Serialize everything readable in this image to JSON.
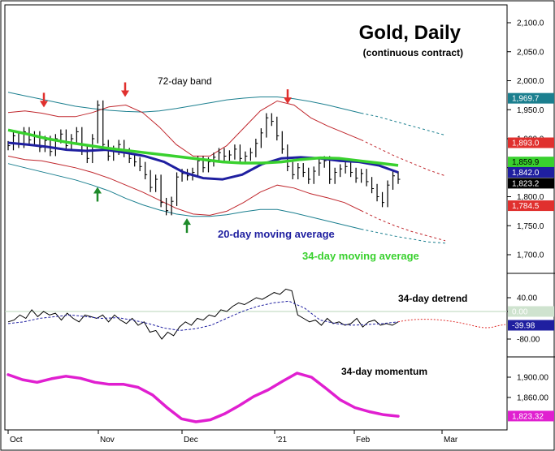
{
  "chart_data": {
    "type": "line",
    "title": "Gold, Daily",
    "subtitle": "(continuous contract)",
    "x_labels": [
      "Oct",
      "Nov",
      "Dec",
      "'21",
      "Feb",
      "Mar"
    ],
    "panels": [
      {
        "name": "price",
        "y_ticks": [
          "2,100.0",
          "2,050.0",
          "2,000.0",
          "1,950.0",
          "1,900.0",
          "1,850.0",
          "1,800.0",
          "1,750.0",
          "1,700.0"
        ],
        "ylim": [
          1670,
          2110
        ],
        "annotations": [
          "72-day band",
          "20-day moving average",
          "34-day moving average"
        ],
        "series": [
          {
            "name": "72-day band",
            "color": "#1b7f8f",
            "role": "outer band",
            "values": [
              1980,
              1974,
              1968,
              1962,
              1956,
              1952,
              1949,
              1947,
              1946,
              1948,
              1952,
              1957,
              1962,
              1967,
              1970,
              1972,
              1972,
              1969,
              1964,
              1958,
              1951,
              1944,
              1938,
              1930,
              1922,
              1914,
              1906
            ]
          },
          {
            "name": "72-day band",
            "color": "#1b7f8f",
            "role": "outer band",
            "values": [
              1857,
              1850,
              1843,
              1836,
              1829,
              1820,
              1810,
              1797,
              1786,
              1777,
              1770,
              1766,
              1766,
              1769,
              1774,
              1778,
              1778,
              1772,
              1765,
              1758,
              1751,
              1744,
              1738,
              1732,
              1727,
              1722,
              1720
            ]
          },
          {
            "name": "band",
            "color": "#c0272d",
            "role": "inner band",
            "values": [
              1945,
              1948,
              1944,
              1938,
              1938,
              1945,
              1955,
              1958,
              1945,
              1920,
              1890,
              1870,
              1870,
              1888,
              1918,
              1948,
              1965,
              1958,
              1936,
              1922,
              1910,
              1898,
              1884,
              1870,
              1858,
              1846,
              1836
            ]
          },
          {
            "name": "band",
            "color": "#c0272d",
            "role": "inner band",
            "values": [
              1870,
              1864,
              1862,
              1856,
              1850,
              1842,
              1832,
              1820,
              1808,
              1794,
              1780,
              1770,
              1768,
              1775,
              1790,
              1808,
              1820,
              1815,
              1805,
              1798,
              1790,
              1776,
              1762,
              1750,
              1740,
              1732,
              1724
            ]
          },
          {
            "name": "20-day moving average",
            "color": "#1f1fa0",
            "values": [
              1893,
              1890,
              1886,
              1881,
              1879,
              1881,
              1876,
              1870,
              1860,
              1842,
              1832,
              1830,
              1838,
              1856,
              1866,
              1868,
              1866,
              1862,
              1860,
              1854,
              1842
            ]
          },
          {
            "name": "34-day moving average",
            "color": "#39d12e",
            "values": [
              1915,
              1908,
              1900,
              1894,
              1889,
              1884,
              1880,
              1876,
              1872,
              1868,
              1864,
              1860,
              1858,
              1858,
              1860,
              1864,
              1867,
              1866,
              1862,
              1858,
              1854
            ]
          }
        ],
        "price_bars_close": [
          1888,
          1905,
          1892,
          1912,
          1898,
          1905,
          1885,
          1897,
          1878,
          1900,
          1908,
          1888,
          1900,
          1912,
          1880,
          1866,
          1900,
          1958,
          1890,
          1870,
          1880,
          1890,
          1876,
          1866,
          1860,
          1852,
          1838,
          1816,
          1830,
          1790,
          1776,
          1792,
          1834,
          1840,
          1836,
          1842,
          1862,
          1850,
          1860,
          1868,
          1876,
          1870,
          1872,
          1882,
          1866,
          1870,
          1876,
          1892,
          1910,
          1936,
          1930,
          1905,
          1882,
          1852,
          1838,
          1850,
          1842,
          1830,
          1844,
          1858,
          1862,
          1830,
          1842,
          1848,
          1852,
          1842,
          1832,
          1840,
          1826,
          1814,
          1800,
          1790,
          1820,
          1836,
          1830
        ],
        "tags": [
          {
            "text": "1,969.7",
            "bg": "#1b7f8f",
            "fg": "#ffffff",
            "value": 1969.7
          },
          {
            "text": "1,893.0",
            "bg": "#e0302e",
            "fg": "#ffffff",
            "value": 1893.0
          },
          {
            "text": "1,859.9",
            "bg": "#39d12e",
            "fg": "#000000",
            "value": 1859.9
          },
          {
            "text": "1,842.0",
            "bg": "#1f1fa0",
            "fg": "#ffffff",
            "value": 1842.0
          },
          {
            "text": "1,823.2",
            "bg": "#000000",
            "fg": "#ffffff",
            "value": 1823.2
          },
          {
            "text": "1,784.5",
            "bg": "#e0302e",
            "fg": "#ffffff",
            "value": 1784.5
          }
        ],
        "markers": [
          {
            "type": "down",
            "color": "red",
            "price": 1940
          },
          {
            "type": "up",
            "color": "green",
            "price": 1828
          },
          {
            "type": "down",
            "color": "red",
            "price": 1958
          },
          {
            "type": "up",
            "color": "green",
            "price": 1774
          },
          {
            "type": "down",
            "color": "red",
            "price": 1946
          }
        ]
      },
      {
        "name": "34-day detrend",
        "y_ticks": [
          "40.00",
          "0.00",
          "-80.00"
        ],
        "ylim": [
          -100,
          80
        ],
        "tags": [
          {
            "text": "0.00",
            "bg": "#cfe3cf",
            "fg": "#ffffff",
            "value": 0
          },
          {
            "text": "-39.98",
            "bg": "#1f1fa0",
            "fg": "#ffffff",
            "value": -39.98
          }
        ],
        "values": [
          -30,
          -25,
          -10,
          -20,
          5,
          -15,
          0,
          -10,
          -5,
          -25,
          -5,
          -20,
          -30,
          -10,
          -15,
          -20,
          -10,
          -30,
          -10,
          -25,
          -35,
          -20,
          -40,
          -30,
          -60,
          -55,
          -80,
          -60,
          -70,
          -45,
          -30,
          -40,
          -20,
          -25,
          -10,
          -15,
          5,
          0,
          15,
          25,
          20,
          30,
          40,
          35,
          45,
          55,
          50,
          65,
          60,
          -10,
          -20,
          -30,
          -25,
          -40,
          -20,
          -35,
          -30,
          -40,
          -35,
          -20,
          -45,
          -30,
          -25,
          -40,
          -35,
          -40,
          -30
        ],
        "smooth_values": [
          -35,
          -30,
          -20,
          -15,
          -10,
          -15,
          -20,
          -18,
          -25,
          -35,
          -48,
          -55,
          -50,
          -40,
          -20,
          0,
          15,
          25,
          30,
          10,
          -25,
          -35,
          -40,
          -38,
          -35,
          -30
        ]
      },
      {
        "name": "34-day momentum",
        "y_ticks": [
          "1,900.00",
          "1,860.00"
        ],
        "ylim": [
          1810,
          1925
        ],
        "tags": [
          {
            "text": "1,823.32",
            "bg": "#e01fd0",
            "fg": "#ffffff",
            "value": 1823.32
          }
        ],
        "values": [
          1905,
          1895,
          1890,
          1897,
          1902,
          1898,
          1890,
          1886,
          1886,
          1880,
          1865,
          1840,
          1818,
          1812,
          1816,
          1828,
          1844,
          1862,
          1875,
          1892,
          1908,
          1900,
          1878,
          1855,
          1840,
          1832,
          1826,
          1823
        ]
      }
    ],
    "panel_labels": [
      "34-day detrend",
      "34-day momentum"
    ]
  }
}
